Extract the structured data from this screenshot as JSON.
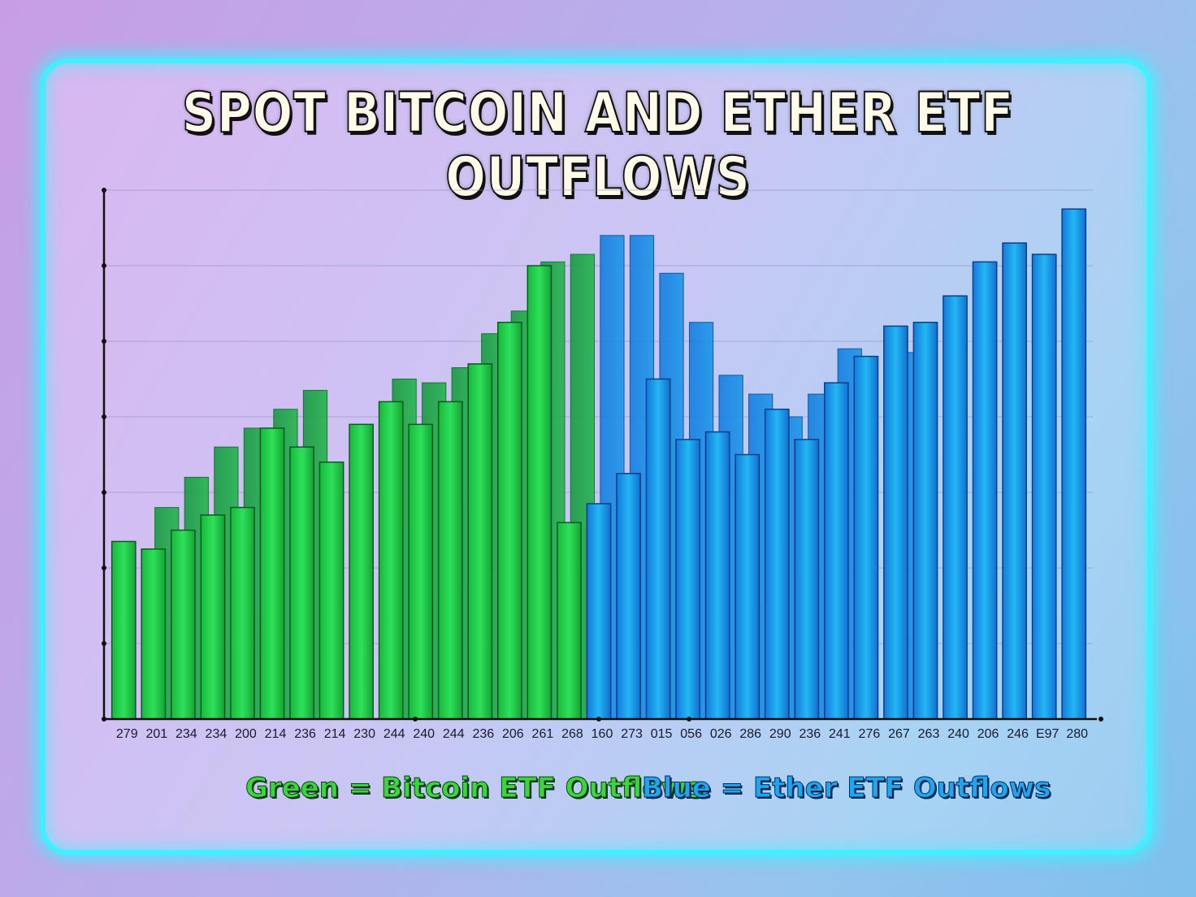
{
  "chart_data": {
    "type": "bar",
    "title": "SPOT BITCOIN AND ETHER ETF OUTFLOWS",
    "ylim": [
      0,
      7
    ],
    "grid": true,
    "legend": "bottom-center",
    "categories": [
      "279",
      "201",
      "234",
      "234",
      "200",
      "214",
      "236",
      "214",
      "230",
      "244",
      "240",
      "244",
      "236",
      "206",
      "261",
      "268",
      "160",
      "273",
      "015",
      "056",
      "026",
      "286",
      "290",
      "236",
      "241",
      "276",
      "267",
      "263",
      "240",
      "206",
      "246",
      "E97",
      "280"
    ],
    "series": [
      {
        "name": "Green = Bitcoin ETF Outflows",
        "color": "#1fcf4a",
        "values": [
          2.35,
          2.25,
          2.5,
          2.7,
          2.8,
          3.85,
          3.6,
          3.4,
          3.9,
          4.2,
          3.9,
          4.2,
          4.7,
          5.25,
          6.0,
          2.6,
          null,
          null,
          null,
          null,
          null,
          null,
          null,
          null,
          null,
          null,
          null,
          null,
          null,
          null,
          null,
          null,
          null
        ]
      },
      {
        "name": "Blue = Ether ETF Outflows",
        "color": "#1a9af0",
        "values": [
          null,
          null,
          null,
          null,
          null,
          null,
          null,
          null,
          null,
          null,
          null,
          null,
          null,
          null,
          null,
          null,
          2.85,
          3.25,
          4.5,
          3.7,
          3.8,
          3.5,
          4.1,
          3.7,
          4.45,
          4.8,
          5.2,
          5.25,
          5.6,
          6.05,
          6.3,
          6.15,
          6.75
        ]
      }
    ],
    "background_bars": [
      null,
      2.8,
      3.2,
      3.6,
      3.85,
      4.1,
      4.35,
      null,
      null,
      4.5,
      4.45,
      4.65,
      5.1,
      5.4,
      6.05,
      6.15,
      6.4,
      6.4,
      5.9,
      5.25,
      4.55,
      4.3,
      4.0,
      4.3,
      4.9,
      null,
      4.85,
      null,
      null,
      null,
      null,
      null,
      null
    ]
  },
  "legend": {
    "green_label": "Green = Bitcoin ETF Outflows",
    "blue_label": "Blue = Ether ETF Outflows"
  }
}
